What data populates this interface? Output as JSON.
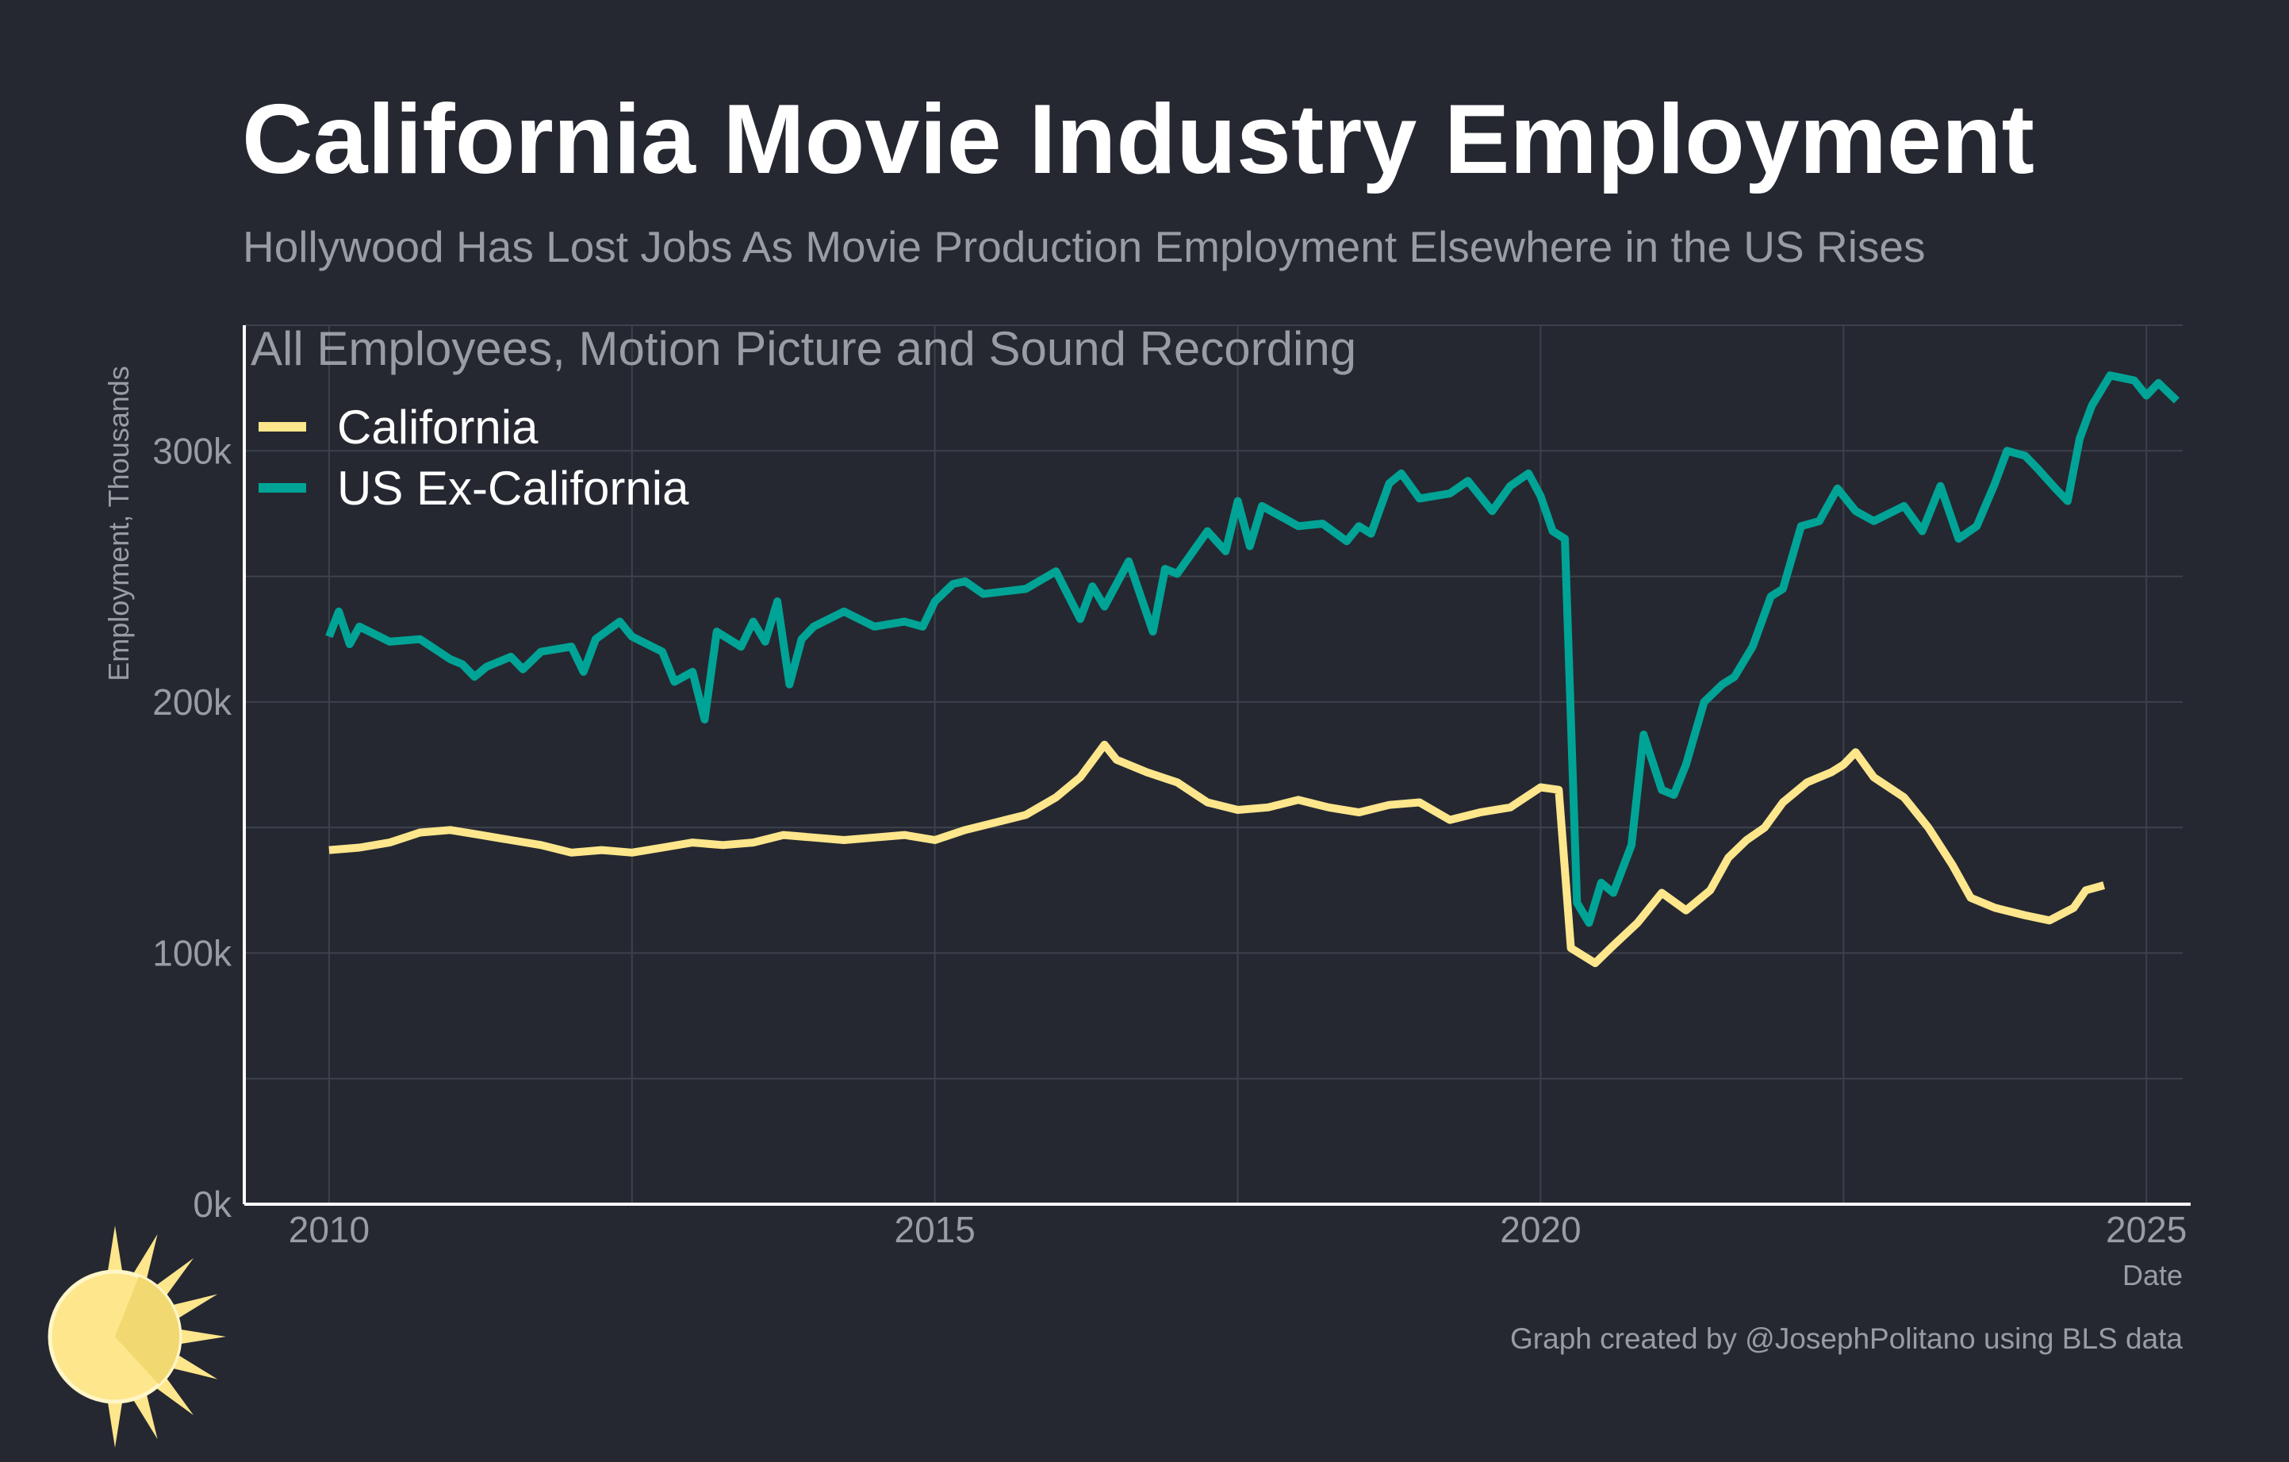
{
  "header": {
    "title": "California Movie Industry Employment",
    "subtitle": "Hollywood Has Lost Jobs As Movie Production Employment Elsewhere in the US Rises",
    "panel_title": "All Employees, Motion Picture and Sound Recording"
  },
  "caption": "Graph created by @JosephPolitano using BLS data",
  "colors": {
    "background": "#252831",
    "california": "#fde68b",
    "us_ex_california": "#00a496",
    "logo_ring": "#00a496",
    "logo_sun": "#fde68b"
  },
  "logo": {
    "icon": "sun-logo-icon"
  },
  "chart_data": {
    "type": "line",
    "x_unit": "year",
    "xlabel": "Date",
    "ylabel": "Employment, Thousands",
    "xlim": [
      2009.3,
      2025.3
    ],
    "ylim": [
      0,
      350
    ],
    "x_ticks": [
      2010,
      2015,
      2020,
      2025
    ],
    "x_tick_labels": [
      "2010",
      "2015",
      "2020",
      "2025"
    ],
    "y_ticks": [
      0,
      100,
      200,
      300
    ],
    "y_tick_labels": [
      "0k",
      "100k",
      "200k",
      "300k"
    ],
    "grid": true,
    "legend_position": "top-left",
    "series": [
      {
        "name": "California",
        "color": "#fde68b",
        "points": [
          [
            2010.0,
            141
          ],
          [
            2010.25,
            142
          ],
          [
            2010.5,
            144
          ],
          [
            2010.75,
            148
          ],
          [
            2011.0,
            149
          ],
          [
            2011.25,
            147
          ],
          [
            2011.5,
            145
          ],
          [
            2011.75,
            143
          ],
          [
            2012.0,
            140
          ],
          [
            2012.25,
            141
          ],
          [
            2012.5,
            140
          ],
          [
            2012.75,
            142
          ],
          [
            2013.0,
            144
          ],
          [
            2013.25,
            143
          ],
          [
            2013.5,
            144
          ],
          [
            2013.75,
            147
          ],
          [
            2014.0,
            146
          ],
          [
            2014.25,
            145
          ],
          [
            2014.5,
            146
          ],
          [
            2014.75,
            147
          ],
          [
            2015.0,
            145
          ],
          [
            2015.25,
            149
          ],
          [
            2015.5,
            152
          ],
          [
            2015.75,
            155
          ],
          [
            2016.0,
            162
          ],
          [
            2016.2,
            170
          ],
          [
            2016.4,
            183
          ],
          [
            2016.5,
            177
          ],
          [
            2016.75,
            172
          ],
          [
            2017.0,
            168
          ],
          [
            2017.25,
            160
          ],
          [
            2017.5,
            157
          ],
          [
            2017.75,
            158
          ],
          [
            2018.0,
            161
          ],
          [
            2018.25,
            158
          ],
          [
            2018.5,
            156
          ],
          [
            2018.75,
            159
          ],
          [
            2019.0,
            160
          ],
          [
            2019.25,
            153
          ],
          [
            2019.5,
            156
          ],
          [
            2019.75,
            158
          ],
          [
            2020.0,
            166
          ],
          [
            2020.15,
            165
          ],
          [
            2020.25,
            102
          ],
          [
            2020.35,
            99
          ],
          [
            2020.45,
            96
          ],
          [
            2020.6,
            103
          ],
          [
            2020.8,
            112
          ],
          [
            2021.0,
            124
          ],
          [
            2021.2,
            117
          ],
          [
            2021.4,
            125
          ],
          [
            2021.55,
            138
          ],
          [
            2021.7,
            145
          ],
          [
            2021.85,
            150
          ],
          [
            2022.0,
            160
          ],
          [
            2022.2,
            168
          ],
          [
            2022.4,
            172
          ],
          [
            2022.5,
            175
          ],
          [
            2022.6,
            180
          ],
          [
            2022.75,
            170
          ],
          [
            2023.0,
            162
          ],
          [
            2023.2,
            150
          ],
          [
            2023.4,
            135
          ],
          [
            2023.55,
            122
          ],
          [
            2023.75,
            118
          ],
          [
            2024.0,
            115
          ],
          [
            2024.2,
            113
          ],
          [
            2024.4,
            118
          ],
          [
            2024.5,
            125
          ],
          [
            2024.65,
            127
          ]
        ]
      },
      {
        "name": "US Ex-California",
        "color": "#00a496",
        "points": [
          [
            2010.0,
            226
          ],
          [
            2010.08,
            236
          ],
          [
            2010.17,
            223
          ],
          [
            2010.25,
            230
          ],
          [
            2010.5,
            224
          ],
          [
            2010.75,
            225
          ],
          [
            2011.0,
            217
          ],
          [
            2011.1,
            215
          ],
          [
            2011.2,
            210
          ],
          [
            2011.3,
            214
          ],
          [
            2011.5,
            218
          ],
          [
            2011.6,
            213
          ],
          [
            2011.75,
            220
          ],
          [
            2012.0,
            222
          ],
          [
            2012.1,
            212
          ],
          [
            2012.2,
            225
          ],
          [
            2012.4,
            232
          ],
          [
            2012.5,
            226
          ],
          [
            2012.75,
            220
          ],
          [
            2012.85,
            208
          ],
          [
            2013.0,
            212
          ],
          [
            2013.1,
            193
          ],
          [
            2013.2,
            228
          ],
          [
            2013.4,
            222
          ],
          [
            2013.5,
            232
          ],
          [
            2013.6,
            224
          ],
          [
            2013.7,
            240
          ],
          [
            2013.8,
            207
          ],
          [
            2013.9,
            225
          ],
          [
            2014.0,
            230
          ],
          [
            2014.25,
            236
          ],
          [
            2014.5,
            230
          ],
          [
            2014.75,
            232
          ],
          [
            2014.9,
            230
          ],
          [
            2015.0,
            240
          ],
          [
            2015.15,
            247
          ],
          [
            2015.25,
            248
          ],
          [
            2015.4,
            243
          ],
          [
            2015.75,
            245
          ],
          [
            2016.0,
            252
          ],
          [
            2016.2,
            233
          ],
          [
            2016.3,
            246
          ],
          [
            2016.4,
            238
          ],
          [
            2016.6,
            256
          ],
          [
            2016.8,
            228
          ],
          [
            2016.9,
            253
          ],
          [
            2017.0,
            251
          ],
          [
            2017.25,
            268
          ],
          [
            2017.4,
            260
          ],
          [
            2017.5,
            280
          ],
          [
            2017.6,
            262
          ],
          [
            2017.7,
            278
          ],
          [
            2018.0,
            270
          ],
          [
            2018.2,
            271
          ],
          [
            2018.4,
            264
          ],
          [
            2018.5,
            270
          ],
          [
            2018.6,
            267
          ],
          [
            2018.75,
            287
          ],
          [
            2018.85,
            291
          ],
          [
            2019.0,
            281
          ],
          [
            2019.25,
            283
          ],
          [
            2019.4,
            288
          ],
          [
            2019.6,
            276
          ],
          [
            2019.75,
            286
          ],
          [
            2019.9,
            291
          ],
          [
            2020.0,
            282
          ],
          [
            2020.1,
            268
          ],
          [
            2020.2,
            265
          ],
          [
            2020.3,
            120
          ],
          [
            2020.4,
            112
          ],
          [
            2020.5,
            128
          ],
          [
            2020.6,
            124
          ],
          [
            2020.75,
            143
          ],
          [
            2020.85,
            187
          ],
          [
            2021.0,
            165
          ],
          [
            2021.1,
            163
          ],
          [
            2021.2,
            175
          ],
          [
            2021.35,
            200
          ],
          [
            2021.5,
            207
          ],
          [
            2021.6,
            210
          ],
          [
            2021.75,
            222
          ],
          [
            2021.9,
            242
          ],
          [
            2022.0,
            245
          ],
          [
            2022.15,
            270
          ],
          [
            2022.3,
            272
          ],
          [
            2022.45,
            285
          ],
          [
            2022.6,
            276
          ],
          [
            2022.75,
            272
          ],
          [
            2023.0,
            278
          ],
          [
            2023.15,
            268
          ],
          [
            2023.3,
            286
          ],
          [
            2023.45,
            265
          ],
          [
            2023.6,
            270
          ],
          [
            2023.75,
            287
          ],
          [
            2023.85,
            300
          ],
          [
            2024.0,
            298
          ],
          [
            2024.1,
            293
          ],
          [
            2024.25,
            285
          ],
          [
            2024.35,
            280
          ],
          [
            2024.45,
            305
          ],
          [
            2024.55,
            318
          ],
          [
            2024.7,
            330
          ],
          [
            2024.9,
            328
          ],
          [
            2025.0,
            322
          ],
          [
            2025.1,
            327
          ],
          [
            2025.25,
            320
          ]
        ]
      }
    ]
  }
}
